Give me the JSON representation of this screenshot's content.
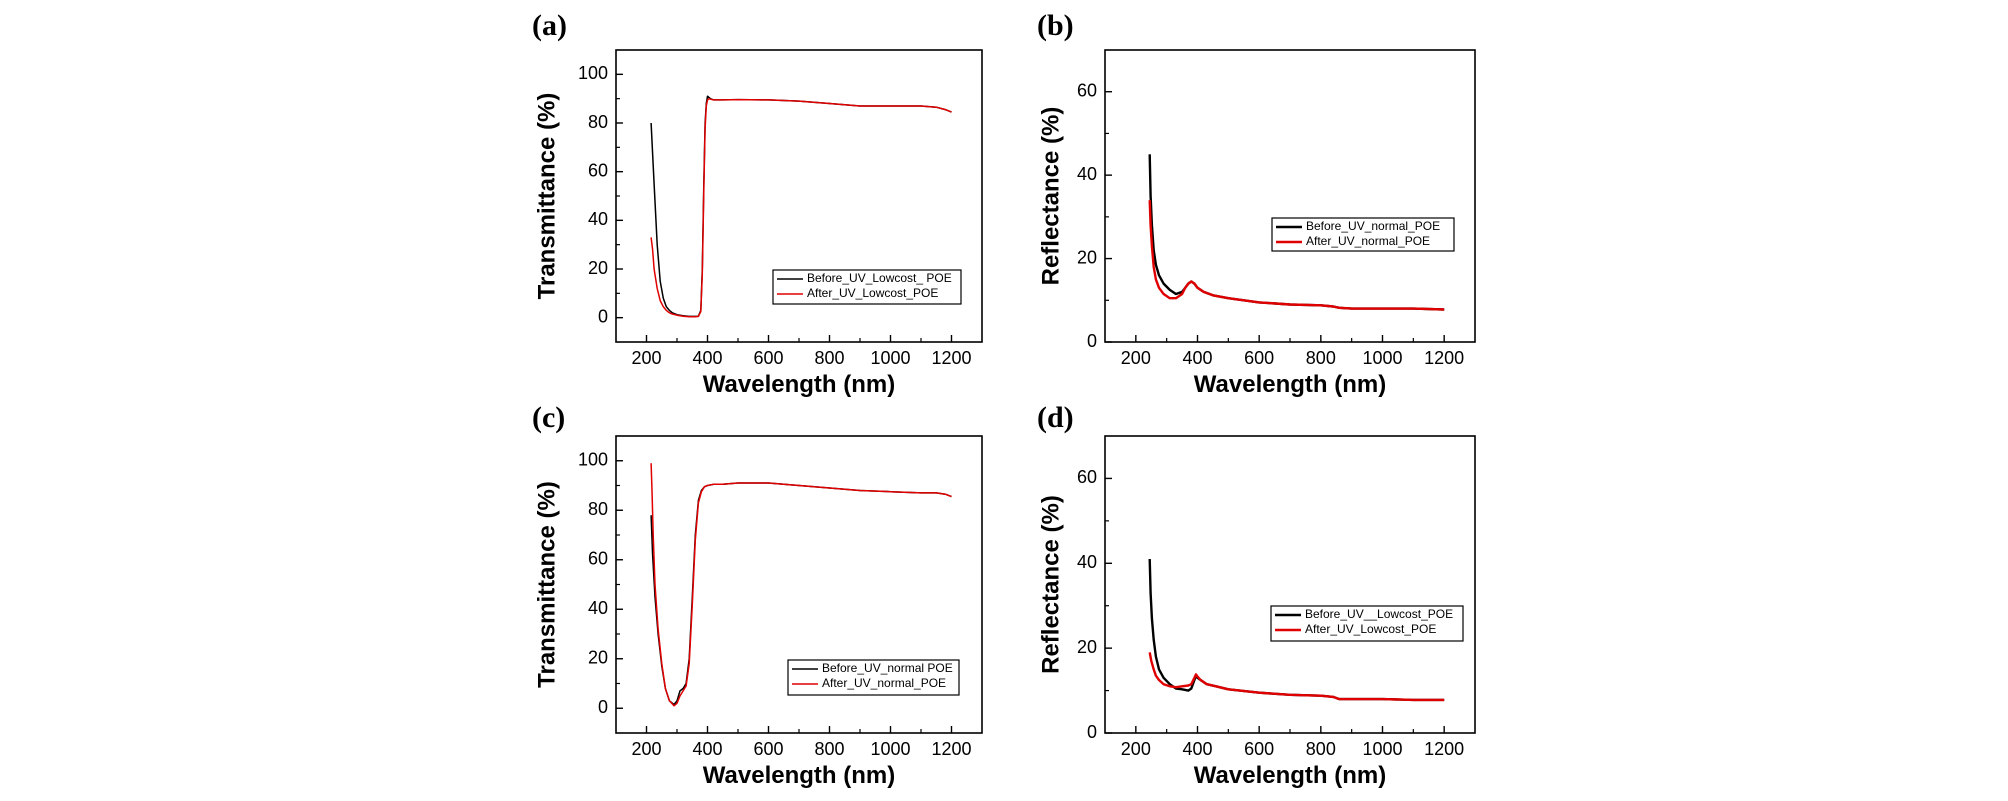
{
  "chart_data": [
    {
      "panel_label": "(a)",
      "type": "line",
      "xlabel": "Wavelength  (nm)",
      "ylabel": "Transmittance   (%)",
      "xlim": [
        100,
        1300
      ],
      "ylim": [
        -10,
        110
      ],
      "xticks": [
        200,
        400,
        600,
        800,
        1000,
        1200
      ],
      "yticks": [
        0,
        20,
        40,
        60,
        80,
        100
      ],
      "legend_position": "right-middle",
      "series": [
        {
          "name": "Before_UV_Lowcost_ POE",
          "color": "#000000",
          "stroke_weight": "thin",
          "x": [
            215,
            225,
            235,
            245,
            255,
            265,
            275,
            285,
            300,
            320,
            340,
            360,
            370,
            378,
            383,
            388,
            392,
            396,
            400,
            405,
            410,
            420,
            430,
            450,
            500,
            600,
            700,
            800,
            900,
            1000,
            1100,
            1150,
            1180,
            1200
          ],
          "y": [
            80,
            55,
            30,
            15,
            8,
            4.5,
            3,
            2,
            1.2,
            0.8,
            0.5,
            0.5,
            0.6,
            3,
            20,
            55,
            80,
            88,
            91,
            90.5,
            90,
            89.5,
            89.5,
            89.5,
            89.6,
            89.5,
            89,
            88,
            87,
            87,
            87,
            86.5,
            85.5,
            84.5
          ]
        },
        {
          "name": "After_UV_Lowcost_POE",
          "color": "#e00000",
          "stroke_weight": "thin",
          "x": [
            215,
            220,
            225,
            235,
            245,
            255,
            265,
            275,
            285,
            300,
            320,
            340,
            360,
            370,
            378,
            383,
            388,
            392,
            396,
            400,
            405,
            410,
            420,
            430,
            450,
            500,
            600,
            700,
            800,
            900,
            1000,
            1100,
            1150,
            1180,
            1200
          ],
          "y": [
            33,
            28,
            20,
            12,
            7,
            4.5,
            3,
            2,
            1.5,
            1,
            0.6,
            0.4,
            0.4,
            0.5,
            2.5,
            18,
            52,
            78,
            87,
            89.5,
            90,
            89.8,
            89.5,
            89.5,
            89.5,
            89.6,
            89.5,
            89,
            88,
            87,
            87,
            87,
            86.5,
            85.5,
            84.5
          ]
        }
      ]
    },
    {
      "panel_label": "(b)",
      "type": "line",
      "xlabel": "Wavelength  (nm)",
      "ylabel": "Reflectance  (%)",
      "xlim": [
        100,
        1300
      ],
      "ylim": [
        0,
        70
      ],
      "xticks": [
        200,
        400,
        600,
        800,
        1000,
        1200
      ],
      "yticks": [
        0,
        20,
        40,
        60
      ],
      "legend_position": "right-middle",
      "series": [
        {
          "name": "Before_UV_normal_POE",
          "color": "#000000",
          "stroke_weight": "thick",
          "x": [
            245,
            248,
            252,
            258,
            265,
            275,
            290,
            310,
            330,
            350,
            360,
            370,
            380,
            390,
            400,
            420,
            450,
            500,
            600,
            700,
            800,
            840,
            860,
            900,
            1000,
            1100,
            1200
          ],
          "y": [
            45,
            35,
            28,
            22,
            18.5,
            16,
            14,
            12.5,
            11.5,
            12,
            13,
            14,
            14.5,
            14,
            13,
            12,
            11.2,
            10.5,
            9.5,
            9,
            8.8,
            8.5,
            8.2,
            8,
            8,
            8,
            7.8
          ]
        },
        {
          "name": "After_UV_normal_POE",
          "color": "#e00000",
          "stroke_weight": "thick",
          "x": [
            245,
            248,
            252,
            258,
            265,
            275,
            290,
            310,
            330,
            350,
            360,
            370,
            380,
            390,
            400,
            420,
            450,
            500,
            600,
            700,
            800,
            840,
            860,
            900,
            1000,
            1100,
            1200
          ],
          "y": [
            34,
            28,
            23,
            18,
            15,
            13,
            11.5,
            10.5,
            10.5,
            11.5,
            13,
            14,
            14.5,
            14,
            13,
            12,
            11.2,
            10.5,
            9.5,
            9,
            8.8,
            8.5,
            8.2,
            8,
            8,
            8,
            7.8
          ]
        }
      ]
    },
    {
      "panel_label": "(c)",
      "type": "line",
      "xlabel": "Wavelength  (nm)",
      "ylabel": "Transmittance   (%)",
      "xlim": [
        100,
        1300
      ],
      "ylim": [
        -10,
        110
      ],
      "xticks": [
        200,
        400,
        600,
        800,
        1000,
        1200
      ],
      "yticks": [
        0,
        20,
        40,
        60,
        80,
        100
      ],
      "legend_position": "right-middle",
      "series": [
        {
          "name": "Before_UV_normal POE",
          "color": "#000000",
          "stroke_weight": "thin",
          "x": [
            215,
            220,
            228,
            238,
            250,
            262,
            275,
            290,
            300,
            310,
            320,
            330,
            340,
            350,
            360,
            370,
            380,
            390,
            400,
            420,
            450,
            500,
            600,
            700,
            800,
            900,
            1000,
            1100,
            1150,
            1180,
            1200
          ],
          "y": [
            78,
            62,
            45,
            30,
            17,
            8,
            3,
            1.5,
            3,
            7,
            8,
            10,
            20,
            45,
            70,
            84,
            88,
            89.5,
            90,
            90.5,
            90.5,
            91,
            91,
            90,
            89,
            88,
            87.5,
            87,
            87,
            86.5,
            85.5
          ]
        },
        {
          "name": "After_UV_normal_POE",
          "color": "#e00000",
          "stroke_weight": "thin",
          "x": [
            215,
            218,
            222,
            228,
            238,
            250,
            262,
            275,
            290,
            300,
            310,
            320,
            330,
            340,
            350,
            360,
            370,
            380,
            390,
            400,
            420,
            450,
            500,
            600,
            700,
            800,
            900,
            1000,
            1100,
            1150,
            1180,
            1200
          ],
          "y": [
            99,
            88,
            70,
            50,
            32,
            18,
            8,
            3,
            1,
            2,
            5,
            7,
            9,
            18,
            42,
            68,
            83,
            87.5,
            89.5,
            90,
            90.5,
            90.5,
            91,
            91,
            90,
            89,
            88,
            87.5,
            87,
            87,
            86.5,
            85.5
          ]
        }
      ]
    },
    {
      "panel_label": "(d)",
      "type": "line",
      "xlabel": "Wavelength  (nm)",
      "ylabel": "Reflectance  (%)",
      "xlim": [
        100,
        1300
      ],
      "ylim": [
        0,
        70
      ],
      "xticks": [
        200,
        400,
        600,
        800,
        1000,
        1200
      ],
      "yticks": [
        0,
        20,
        40,
        60
      ],
      "legend_position": "right-middle",
      "series": [
        {
          "name": "Before_UV__Lowcost_POE",
          "color": "#000000",
          "stroke_weight": "thick",
          "x": [
            245,
            248,
            252,
            258,
            265,
            275,
            290,
            310,
            330,
            350,
            370,
            380,
            390,
            395,
            400,
            410,
            430,
            460,
            500,
            600,
            700,
            800,
            840,
            860,
            900,
            1000,
            1100,
            1200
          ],
          "y": [
            41,
            33,
            27,
            22,
            18,
            15,
            13,
            11.5,
            10.5,
            10.3,
            10,
            10.5,
            12.5,
            13.5,
            13,
            12.5,
            11.5,
            11,
            10.3,
            9.5,
            9,
            8.8,
            8.5,
            8,
            8,
            8,
            7.8,
            7.8
          ]
        },
        {
          "name": "After_UV_Lowcost_POE",
          "color": "#e00000",
          "stroke_weight": "thick",
          "x": [
            245,
            250,
            258,
            265,
            275,
            290,
            310,
            330,
            350,
            370,
            380,
            390,
            395,
            400,
            410,
            430,
            460,
            500,
            600,
            700,
            800,
            840,
            860,
            900,
            1000,
            1100,
            1200
          ],
          "y": [
            19,
            17,
            15,
            13.5,
            12.5,
            11.5,
            11,
            10.8,
            11,
            11.2,
            11.5,
            13,
            13.8,
            13.3,
            12.5,
            11.5,
            11,
            10.3,
            9.5,
            9,
            8.8,
            8.5,
            8,
            8,
            8,
            7.8,
            7.8
          ]
        }
      ]
    }
  ]
}
